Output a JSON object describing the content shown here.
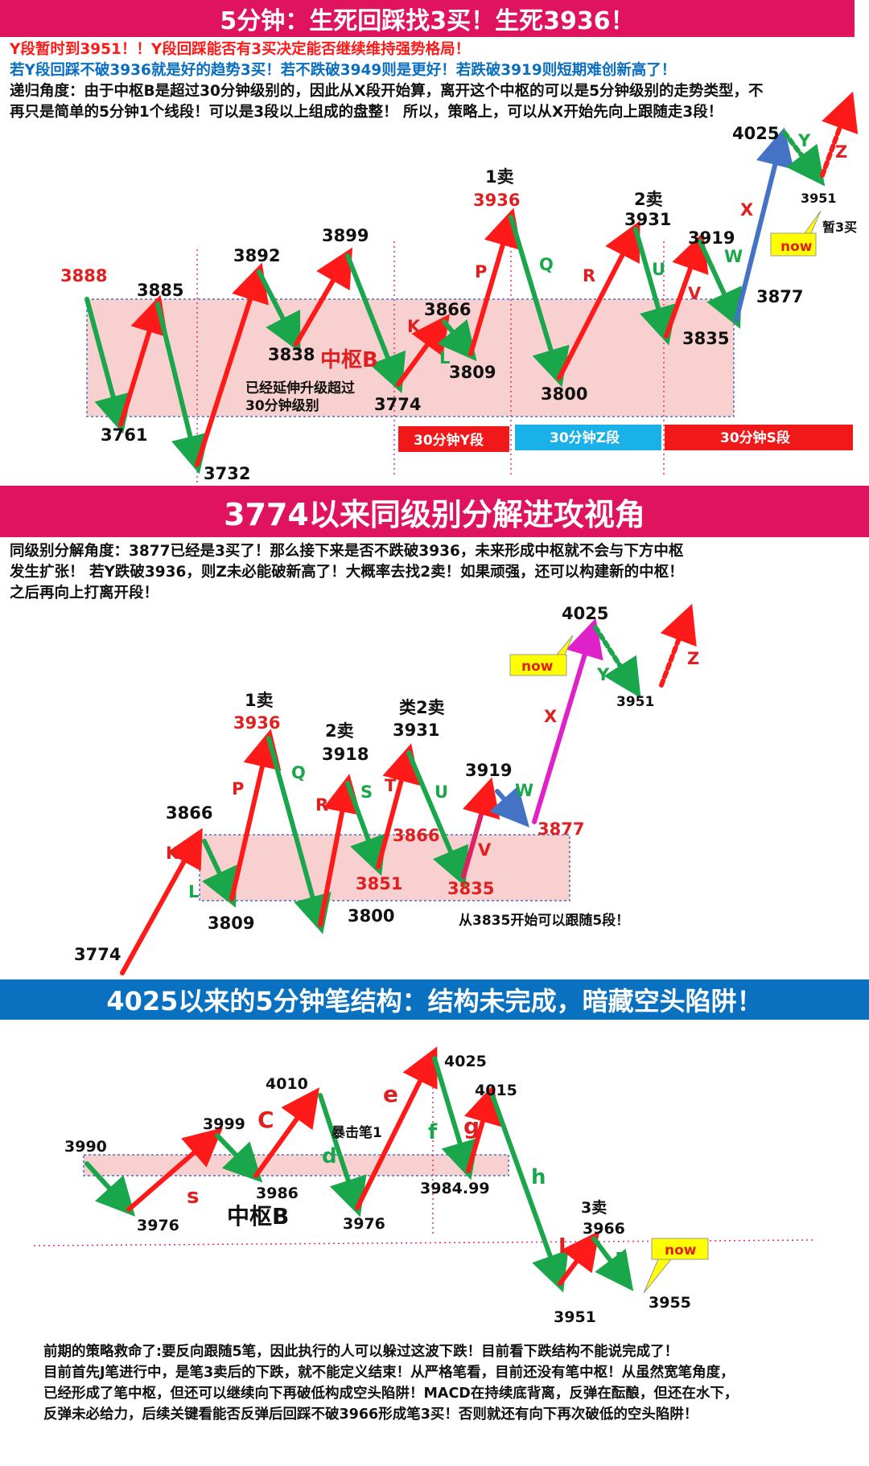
{
  "colors": {
    "red": "#ff1a1a",
    "green": "#1aa64a",
    "blue": "#4472c4",
    "magenta": "#e020c8",
    "pink": "#f8d0d0",
    "pinkBanner": "#e0135e",
    "blueBanner": "#0a70c0",
    "cyan": "#1ab0e8",
    "darkred": "#e02020"
  },
  "section1": {
    "title": "5分钟：生死回踩找3买！生死3936！",
    "line1": "Y段暂时到3951！！Y段回踩能否有3买决定能否继续维持强势格局！",
    "line2": "若Y段回踩不破3936就是好的趋势3买！若不跌破3949则是更好！若跌破3919则短期难创新高了！",
    "line3": "递归角度：由于中枢B是超过30分钟级别的，因此从X段开始算，离开这个中枢的可以是5分钟级别的走势类型，不",
    "line4": "再只是简单的5分钟1个线段！可以是3段以上组成的盘整！  所以，策略上，可以从X开始先向上跟随走3段！",
    "labels": {
      "v3888": "3888",
      "v3885": "3885",
      "v3761": "3761",
      "v3732": "3732",
      "v3892": "3892",
      "v3838": "3838",
      "v3899": "3899",
      "center": "中枢B",
      "ext1": "已经延伸升级超过",
      "ext2": "30分钟级别",
      "v3774": "3774",
      "v3866": "3866",
      "v3809": "3809",
      "sell1": "1卖",
      "v3936": "3936",
      "v3800": "3800",
      "sell2": "2卖",
      "v3931": "3931",
      "v3835": "3835",
      "v3919": "3919",
      "v3877": "3877",
      "v4025": "4025",
      "v3951": "3951",
      "buy3": "暂3买",
      "now": "now",
      "K": "K",
      "L": "L",
      "P": "P",
      "Q": "Q",
      "R": "R",
      "U": "U",
      "V": "V",
      "W": "W",
      "X": "X",
      "Y": "Y",
      "Z": "Z",
      "segY": "30分钟Y段",
      "segZ": "30分钟Z段",
      "segS": "30分钟S段"
    }
  },
  "section2": {
    "title": "3774以来同级别分解进攻视角",
    "line1": "同级别分解角度：3877已经是3买了！那么接下来是否不跌破3936，未来形成中枢就不会与下方中枢",
    "line2": "发生扩张！  若Y跌破3936，则Z未必能破新高了！大概率去找2卖！如果顽强，还可以构建新的中枢！",
    "line3": "之后再向上打离开段！",
    "labels": {
      "v3774": "3774",
      "v3866": "3866",
      "v3809": "3809",
      "sell1": "1卖",
      "v3936": "3936",
      "v3800": "3800",
      "sell2": "2卖",
      "v3918": "3918",
      "v3851": "3851",
      "v3866b": "3866",
      "sell2b": "类2卖",
      "v3931": "3931",
      "v3835": "3835",
      "v3919": "3919",
      "v3877": "3877",
      "v4025": "4025",
      "v3951": "3951",
      "now": "now",
      "note": "从3835开始可以跟随5段！",
      "K": "K",
      "L": "L",
      "P": "P",
      "Q": "Q",
      "R": "R",
      "S": "S",
      "T": "T",
      "U": "U",
      "V": "V",
      "W": "W",
      "X": "X",
      "Y": "Y",
      "Z": "Z"
    }
  },
  "section3": {
    "title": "4025以来的5分钟笔结构：结构未完成，暗藏空头陷阱！",
    "labels": {
      "v3990": "3990",
      "v3976": "3976",
      "v3999": "3999",
      "v3986": "3986",
      "v4010": "4010",
      "burst": "暴击笔1",
      "v3976b": "3976",
      "v4025": "4025",
      "v4015": "4015",
      "v398499": "3984.99",
      "center": "中枢B",
      "buy3": "3卖",
      "v3966": "3966",
      "v3951": "3951",
      "v3955": "3955",
      "now": "now",
      "s": "s",
      "C": "C",
      "d": "d",
      "e": "e",
      "f": "f",
      "g": "g",
      "h": "h",
      "I": "I",
      "J": "J"
    },
    "para1": "前期的策略救命了:要反向跟随5笔，因此执行的人可以躲过这波下跌！目前看下跌结构不能说完成了！",
    "para2": "目前首先J笔进行中，是笔3卖后的下跌，就不能定义结束！从严格笔看，目前还没有笔中枢！从虽然宽笔角度，",
    "para3": "已经形成了笔中枢，但还可以继续向下再破低构成空头陷阱！MACD在持续底背离，反弹在酝酿，但还在水下，",
    "para4": "反弹未必给力，后续关键看能否反弹后回踩不破3966形成笔3买！否则就还有向下再次破低的空头陷阱！"
  }
}
